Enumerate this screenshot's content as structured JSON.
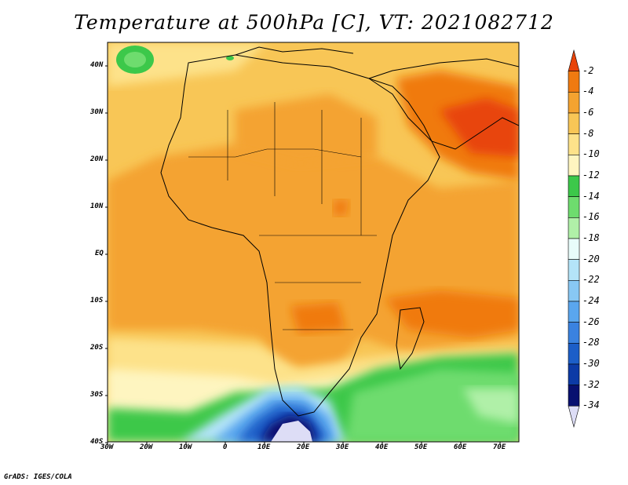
{
  "title": "Temperature at 500hPa [C], VT: 2021082712",
  "footer": "GrADS: IGES/COLA",
  "axes": {
    "lat_labels": [
      "40N",
      "30N",
      "20N",
      "10N",
      "EQ",
      "10S",
      "20S",
      "30S",
      "40S"
    ],
    "lon_labels": [
      "30W",
      "20W",
      "10W",
      "0",
      "10E",
      "20E",
      "30E",
      "40E",
      "50E",
      "60E",
      "70E"
    ]
  },
  "colorbar": {
    "labels": [
      "-2",
      "-4",
      "-6",
      "-8",
      "-10",
      "-12",
      "-14",
      "-16",
      "-18",
      "-20",
      "-22",
      "-24",
      "-26",
      "-28",
      "-30",
      "-32",
      "-34"
    ],
    "colors": [
      "#e8440a",
      "#f07a10",
      "#f4a330",
      "#f8c656",
      "#fde28a",
      "#fef5c0",
      "#3cc84a",
      "#6edc6e",
      "#b0f0a8",
      "#e8fcfa",
      "#b4e4f8",
      "#88c8f4",
      "#5aa6ee",
      "#3a82e0",
      "#1c5ec8",
      "#0c3aa6",
      "#081070",
      "#ddddf6"
    ]
  },
  "map": {
    "lat_range": [
      -40,
      45
    ],
    "lon_range": [
      -30,
      75
    ],
    "field": "Temperature at 500hPa",
    "units": "C"
  }
}
